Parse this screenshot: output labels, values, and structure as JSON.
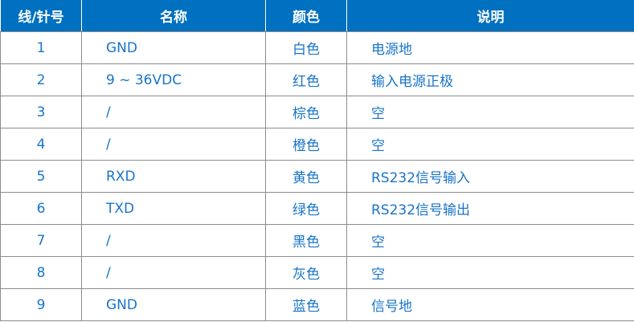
{
  "headers": [
    "线/针号",
    "名称",
    "颜色",
    "说明"
  ],
  "rows": [
    [
      "1",
      "GND",
      "白色",
      "电源地"
    ],
    [
      "2",
      "9 ~ 36VDC",
      "红色",
      "输入电源正极"
    ],
    [
      "3",
      "/",
      "棕色",
      "空"
    ],
    [
      "4",
      "/",
      "橙色",
      "空"
    ],
    [
      "5",
      "RXD",
      "黄色",
      "RS232信号输入"
    ],
    [
      "6",
      "TXD",
      "绿色",
      "RS232信号输出"
    ],
    [
      "7",
      "/",
      "黑色",
      "空"
    ],
    [
      "8",
      "/",
      "灰色",
      "空"
    ],
    [
      "9",
      "GND",
      "蓝色",
      "信号地"
    ]
  ],
  "colors": {
    "header_bg": "#0070c0",
    "text": "#1874c8",
    "border": "#8c8c8c"
  }
}
